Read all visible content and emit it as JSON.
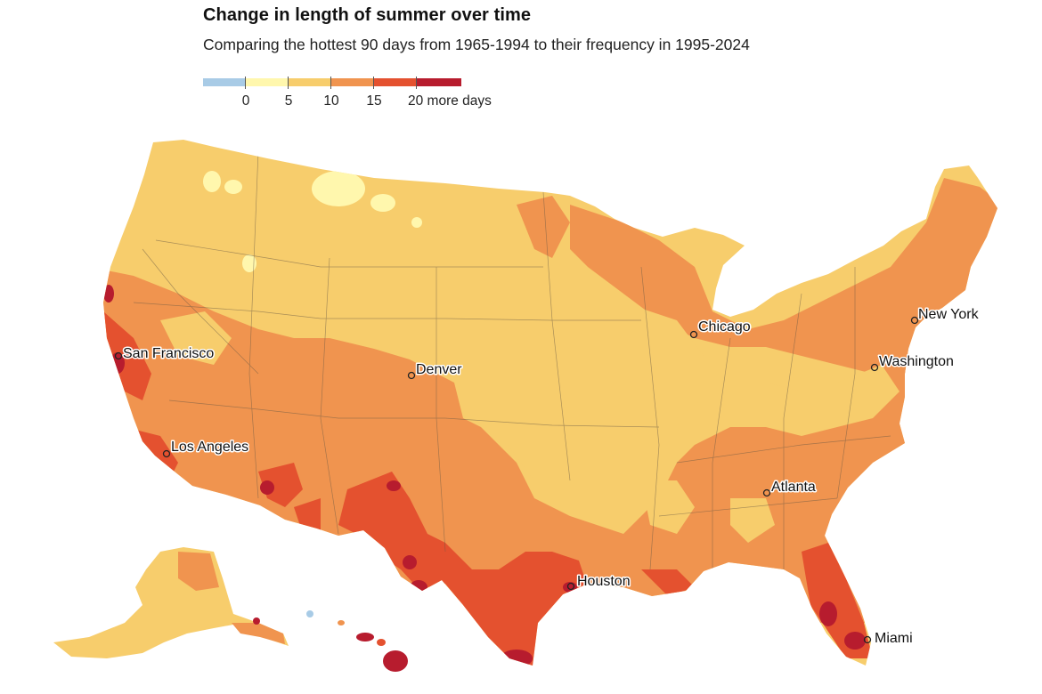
{
  "title": "Change in length of summer over time",
  "subtitle": "Comparing the hottest 90 days from 1965-1994 to their frequency in 1995-2024",
  "legend": {
    "colors": [
      "#a8cbe6",
      "#fff7ad",
      "#f7cd6c",
      "#f0944f",
      "#e4512f",
      "#b71c2e"
    ],
    "labels": [
      "0",
      "5",
      "10",
      "15",
      "20 more days"
    ]
  },
  "cities": [
    {
      "name": "San Francisco"
    },
    {
      "name": "Los Angeles"
    },
    {
      "name": "Denver"
    },
    {
      "name": "Chicago"
    },
    {
      "name": "Houston"
    },
    {
      "name": "Atlanta"
    },
    {
      "name": "New York"
    },
    {
      "name": "Washington"
    },
    {
      "name": "Miami"
    }
  ]
}
